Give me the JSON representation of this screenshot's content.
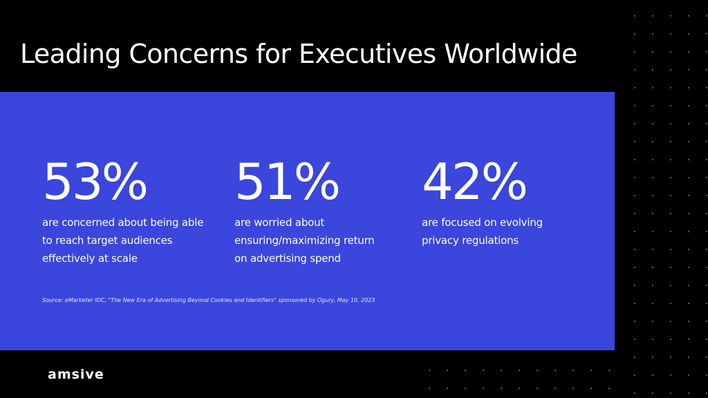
{
  "title": "Leading Concerns for Executives Worldwide",
  "stats": [
    {
      "value": "53%",
      "description": "are concerned about being able to reach target audiences effectively at scale"
    },
    {
      "value": "51%",
      "description": "are worried about ensuring/maximizing return on advertising spend"
    },
    {
      "value": "42%",
      "description": "are focused on evolving privacy regulations"
    }
  ],
  "source": "Source: eMarketer IDC, \"The New Era of Advertising Beyond Cookies and Identifiers\" sponsored by Ogury, May 10, 2023",
  "logo": "amsive",
  "colors": {
    "background": "#000000",
    "panel": "#3a46dc",
    "text": "#ffffff"
  }
}
